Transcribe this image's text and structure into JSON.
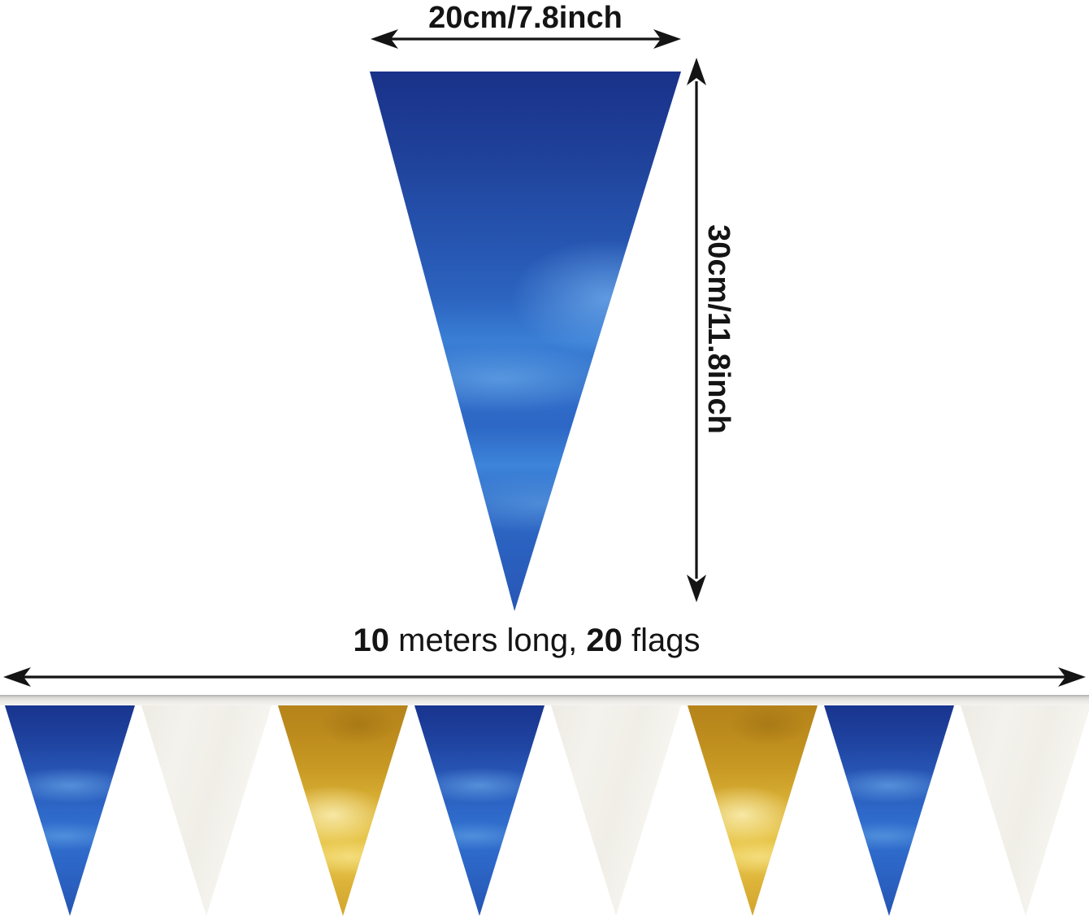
{
  "top_diagram": {
    "width_label": "20cm/7.8inch",
    "height_label": "30cm/11.8inch",
    "flag_color_name": "blue"
  },
  "bottom_diagram": {
    "label": {
      "length_value": "10",
      "length_text": " meters long, ",
      "flags_value": "20",
      "flags_text": " flags"
    },
    "flag_sequence": [
      "blue",
      "white",
      "gold",
      "blue",
      "white",
      "gold",
      "blue",
      "white"
    ],
    "flags_shown": 8
  },
  "colors": {
    "blue_flag": "#2b62c4",
    "gold_flag": "#e0ba3e",
    "white_flag": "#f2f0e9",
    "ribbon": "#e9e8e4",
    "arrow": "#141414",
    "background": "#ffffff"
  }
}
